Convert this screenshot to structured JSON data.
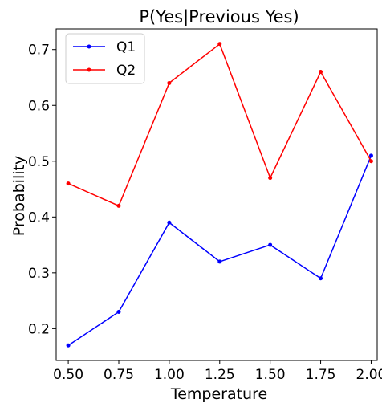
{
  "chart_data": {
    "type": "line",
    "title": "P(Yes|Previous Yes)",
    "xlabel": "Temperature",
    "ylabel": "Probability",
    "x": [
      0.5,
      0.75,
      1.0,
      1.25,
      1.5,
      1.75,
      2.0
    ],
    "x_ticks": [
      "0.50",
      "0.75",
      "1.00",
      "1.25",
      "1.50",
      "1.75",
      "2.00"
    ],
    "y_ticks": [
      "0.2",
      "0.3",
      "0.4",
      "0.5",
      "0.6",
      "0.7"
    ],
    "xlim": [
      0.44,
      2.03
    ],
    "ylim": [
      0.143,
      0.737
    ],
    "grid": false,
    "legend_position": "upper-left",
    "series": [
      {
        "name": "Q1",
        "color": "#0000ff",
        "marker": "dot",
        "values": [
          0.17,
          0.23,
          0.39,
          0.32,
          0.35,
          0.29,
          0.51
        ]
      },
      {
        "name": "Q2",
        "color": "#ff0000",
        "marker": "dot",
        "values": [
          0.46,
          0.42,
          0.64,
          0.71,
          0.47,
          0.66,
          0.5
        ]
      }
    ]
  }
}
